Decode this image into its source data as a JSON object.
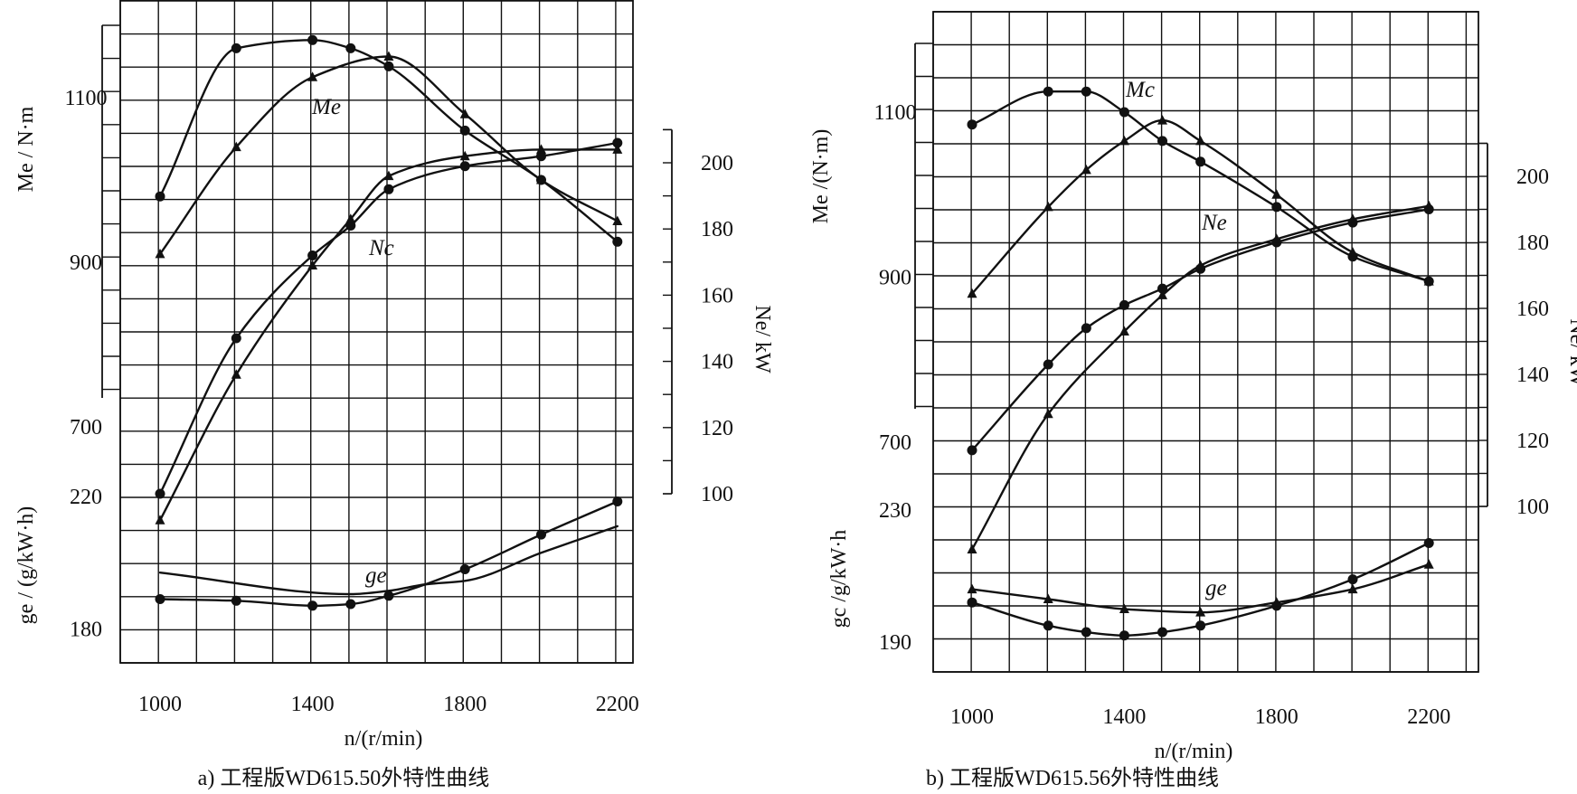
{
  "chart_data": [
    {
      "type": "line",
      "caption": "a) 工程版WD615.50外特性曲线",
      "xlabel": "n/(r/min)",
      "xlim": [
        900,
        2300
      ],
      "x_ticks": [
        1000,
        1400,
        1800,
        2200
      ],
      "axes": {
        "torque": {
          "label": "Me / N·m",
          "ticks": [
            1100,
            900,
            700
          ],
          "range": [
            540,
            1280
          ]
        },
        "power": {
          "label": "Ne/ kW",
          "ticks": [
            200,
            180,
            160,
            140,
            120,
            100
          ],
          "range": [
            100,
            210
          ]
        },
        "fuel": {
          "label": "ge / (g/kW·h)",
          "ticks": [
            220,
            180
          ],
          "range": [
            170,
            230
          ]
        }
      },
      "curve_labels": {
        "torque": "Me",
        "power": "Nc",
        "fuel": "ge"
      },
      "series": [
        {
          "name": "Me (circle)",
          "axis": "torque",
          "marker": "circle",
          "x": [
            1000,
            1200,
            1400,
            1500,
            1600,
            1800,
            2000,
            2200
          ],
          "y": [
            980,
            1160,
            1170,
            1160,
            1138,
            1060,
            1000,
            925
          ]
        },
        {
          "name": "Me (triangle)",
          "axis": "torque",
          "marker": "triangle",
          "x": [
            1000,
            1200,
            1400,
            1600,
            1800,
            2000,
            2200
          ],
          "y": [
            910,
            1040,
            1125,
            1150,
            1080,
            1000,
            950
          ]
        },
        {
          "name": "Ne (circle)",
          "axis": "power",
          "marker": "circle",
          "x": [
            1000,
            1200,
            1400,
            1500,
            1600,
            1800,
            2000,
            2200
          ],
          "y": [
            100,
            147,
            172,
            181,
            192,
            199,
            202,
            206
          ]
        },
        {
          "name": "Ne (triangle)",
          "axis": "power",
          "marker": "triangle",
          "x": [
            1000,
            1200,
            1400,
            1500,
            1600,
            1800,
            2000,
            2200
          ],
          "y": [
            92,
            136,
            169,
            183,
            196,
            202,
            204,
            204
          ]
        },
        {
          "name": "ge (circle)",
          "axis": "fuel",
          "marker": "circle",
          "x": [
            1000,
            1200,
            1400,
            1500,
            1600,
            1800,
            2000,
            2200
          ],
          "y": [
            189,
            188.5,
            187,
            187.5,
            190,
            198,
            208.5,
            218.5
          ]
        },
        {
          "name": "ge (line)",
          "axis": "fuel",
          "marker": "none",
          "x": [
            1000,
            1500,
            1600,
            1700,
            1800,
            2000,
            2200
          ],
          "y": [
            197,
            190.5,
            191.5,
            193.5,
            194.5,
            203,
            211
          ]
        }
      ]
    },
    {
      "type": "line",
      "caption": "b) 工程版WD615.56外特性曲线",
      "xlabel": "n/(r/min)",
      "xlim": [
        900,
        2300
      ],
      "x_ticks": [
        1000,
        1400,
        1800,
        2200
      ],
      "axes": {
        "torque": {
          "label": "Me /(N·m)",
          "ticks": [
            1100,
            900,
            700
          ],
          "range": [
            540,
            1240
          ]
        },
        "power": {
          "label": "Ne/ kW",
          "ticks": [
            200,
            180,
            160,
            140,
            120,
            100
          ],
          "range": [
            100,
            210
          ]
        },
        "fuel": {
          "label": "gc /g/kW·h",
          "ticks": [
            230,
            190
          ],
          "range": [
            180,
            240
          ]
        }
      },
      "curve_labels": {
        "torque": "Mc",
        "power": "Ne",
        "fuel": "ge"
      },
      "series": [
        {
          "name": "Me (circle)",
          "axis": "torque",
          "marker": "circle",
          "x": [
            1000,
            1200,
            1300,
            1400,
            1500,
            1600,
            1800,
            2000,
            2200
          ],
          "y": [
            1085,
            1125,
            1125,
            1100,
            1065,
            1040,
            985,
            925,
            895
          ]
        },
        {
          "name": "Me (triangle)",
          "axis": "torque",
          "marker": "triangle",
          "x": [
            1000,
            1200,
            1300,
            1400,
            1500,
            1600,
            1800,
            2000,
            2200
          ],
          "y": [
            880,
            985,
            1030,
            1065,
            1090,
            1065,
            1000,
            930,
            895
          ]
        },
        {
          "name": "Ne (circle)",
          "axis": "power",
          "marker": "circle",
          "x": [
            1000,
            1200,
            1300,
            1400,
            1500,
            1600,
            1800,
            2000,
            2200
          ],
          "y": [
            117,
            143,
            154,
            161,
            166,
            172,
            180,
            186,
            190
          ]
        },
        {
          "name": "Ne (triangle)",
          "axis": "power",
          "marker": "triangle",
          "x": [
            1000,
            1200,
            1400,
            1500,
            1600,
            1800,
            2000,
            2200
          ],
          "y": [
            87,
            128,
            153,
            164,
            173,
            181,
            187,
            191
          ]
        },
        {
          "name": "ge (circle)",
          "axis": "fuel",
          "marker": "circle",
          "x": [
            1000,
            1200,
            1300,
            1400,
            1500,
            1600,
            1800,
            2000,
            2200
          ],
          "y": [
            202,
            195,
            193,
            192,
            193,
            195,
            201,
            209,
            220
          ]
        },
        {
          "name": "ge (triangle)",
          "axis": "fuel",
          "marker": "triangle",
          "x": [
            1000,
            1200,
            1400,
            1600,
            1800,
            2000,
            2200
          ],
          "y": [
            206,
            203,
            200,
            199,
            202,
            206,
            213.5
          ]
        }
      ]
    }
  ]
}
